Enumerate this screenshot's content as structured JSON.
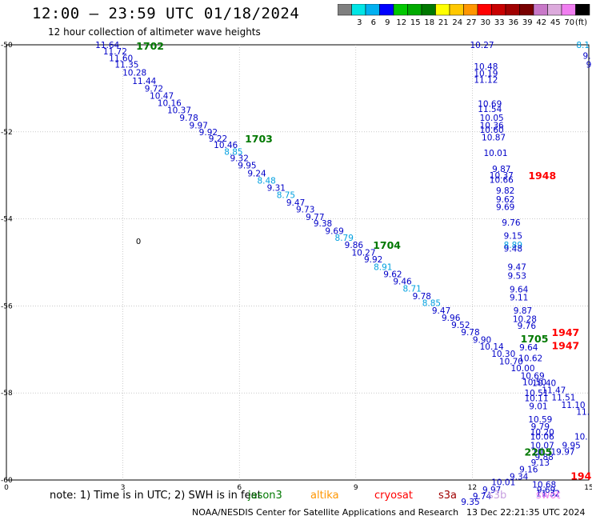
{
  "title": "12:00 – 23:59 UTC 01/18/2024",
  "subtitle": "12 hour collection of altimeter wave heights",
  "colorbar": {
    "unit": "(ft)",
    "bins": [
      {
        "label": "",
        "color": "#7f7f7f"
      },
      {
        "label": "3",
        "color": "#00e5e5"
      },
      {
        "label": "6",
        "color": "#00b0f0"
      },
      {
        "label": "9",
        "color": "#0000ff"
      },
      {
        "label": "12",
        "color": "#00c800"
      },
      {
        "label": "15",
        "color": "#00aa00"
      },
      {
        "label": "18",
        "color": "#007800"
      },
      {
        "label": "21",
        "color": "#ffff00"
      },
      {
        "label": "24",
        "color": "#ffc800"
      },
      {
        "label": "27",
        "color": "#ff9600"
      },
      {
        "label": "30",
        "color": "#ff0000"
      },
      {
        "label": "33",
        "color": "#c80000"
      },
      {
        "label": "36",
        "color": "#a00000"
      },
      {
        "label": "39",
        "color": "#780000"
      },
      {
        "label": "42",
        "color": "#c878c8"
      },
      {
        "label": "45",
        "color": "#dcaadc"
      },
      {
        "label": "70",
        "color": "#f07ef0"
      },
      {
        "label": "",
        "color": "#000000"
      }
    ]
  },
  "note": "note:  1) Time is in UTC; 2) SWH is in feet",
  "legend": [
    {
      "name": "jason3",
      "color": "#007800"
    },
    {
      "name": "altika",
      "color": "#ff9600"
    },
    {
      "name": "cryosat",
      "color": "#ff0000"
    },
    {
      "name": "s3a",
      "color": "#a00000"
    },
    {
      "name": "s3b",
      "color": "#c8a0e0"
    },
    {
      "name": "swot",
      "color": "#f07ef0"
    }
  ],
  "credit": "NOAA/NESDIS Center for Satellite Applications and Research",
  "timestamp": "13 Dec 22:21:35 UTC 2024",
  "chart_data": {
    "type": "scatter",
    "xlim": [
      0,
      15
    ],
    "ylim": [
      -60,
      -50
    ],
    "xticks": [
      "0",
      "3",
      "6",
      "9",
      "12",
      "15"
    ],
    "yticks": [
      "-50",
      "-52",
      "-54",
      "-56",
      "-58",
      "-60"
    ],
    "marker_label": {
      "x": 3.4,
      "y": -54.5,
      "text": "0"
    },
    "pass_labels": [
      {
        "x": 3.7,
        "y": -50.02,
        "text": "1702",
        "color": "#007800"
      },
      {
        "x": 6.5,
        "y": -52.15,
        "text": "1703",
        "color": "#007800"
      },
      {
        "x": 9.8,
        "y": -54.6,
        "text": "1704",
        "color": "#007800"
      },
      {
        "x": 13.6,
        "y": -56.75,
        "text": "1705",
        "color": "#007800"
      },
      {
        "x": 13.7,
        "y": -59.35,
        "text": "2205",
        "color": "#007800"
      },
      {
        "x": 13.8,
        "y": -53.0,
        "text": "1948",
        "color": "#ff0000"
      },
      {
        "x": 14.4,
        "y": -56.6,
        "text": "1947",
        "color": "#ff0000"
      },
      {
        "x": 14.4,
        "y": -56.9,
        "text": "1947",
        "color": "#ff0000"
      },
      {
        "x": 14.8,
        "y": -59.9,
        "text": "194",
        "color": "#ff0000"
      }
    ],
    "points": [
      {
        "x": 2.6,
        "y": -50.0,
        "v": "11.64",
        "color": "#0000c8"
      },
      {
        "x": 2.8,
        "y": -50.15,
        "v": "11.72",
        "color": "#0000c8"
      },
      {
        "x": 2.95,
        "y": -50.3,
        "v": "11.60",
        "color": "#0000c8"
      },
      {
        "x": 3.1,
        "y": -50.45,
        "v": "11.35",
        "color": "#0000c8"
      },
      {
        "x": 3.3,
        "y": -50.63,
        "v": "10.28",
        "color": "#0000c8"
      },
      {
        "x": 3.55,
        "y": -50.83,
        "v": "11.44",
        "color": "#0000c8"
      },
      {
        "x": 3.8,
        "y": -51.0,
        "v": "9.72",
        "color": "#0000c8"
      },
      {
        "x": 4.0,
        "y": -51.17,
        "v": "10.47",
        "color": "#0000c8"
      },
      {
        "x": 4.2,
        "y": -51.33,
        "v": "10.16",
        "color": "#0000c8"
      },
      {
        "x": 4.45,
        "y": -51.5,
        "v": "10.37",
        "color": "#0000c8"
      },
      {
        "x": 4.7,
        "y": -51.67,
        "v": "9.78",
        "color": "#0000c8"
      },
      {
        "x": 4.95,
        "y": -51.85,
        "v": "9.97",
        "color": "#0000c8"
      },
      {
        "x": 5.2,
        "y": -52.0,
        "v": "9.92",
        "color": "#0000c8"
      },
      {
        "x": 5.45,
        "y": -52.15,
        "v": "9.22",
        "color": "#0000c8"
      },
      {
        "x": 5.65,
        "y": -52.3,
        "v": "10.46",
        "color": "#0000c8"
      },
      {
        "x": 5.85,
        "y": -52.45,
        "v": "8.85",
        "color": "#00a0e0"
      },
      {
        "x": 6.0,
        "y": -52.6,
        "v": "9.32",
        "color": "#0000c8"
      },
      {
        "x": 6.2,
        "y": -52.77,
        "v": "9.95",
        "color": "#0000c8"
      },
      {
        "x": 6.45,
        "y": -52.95,
        "v": "9.24",
        "color": "#0000c8"
      },
      {
        "x": 6.7,
        "y": -53.12,
        "v": "8.48",
        "color": "#00a0e0"
      },
      {
        "x": 6.95,
        "y": -53.28,
        "v": "9.31",
        "color": "#0000c8"
      },
      {
        "x": 7.2,
        "y": -53.45,
        "v": "8.75",
        "color": "#00a0e0"
      },
      {
        "x": 7.45,
        "y": -53.62,
        "v": "9.47",
        "color": "#0000c8"
      },
      {
        "x": 7.7,
        "y": -53.78,
        "v": "9.73",
        "color": "#0000c8"
      },
      {
        "x": 7.95,
        "y": -53.95,
        "v": "9.77",
        "color": "#0000c8"
      },
      {
        "x": 8.15,
        "y": -54.1,
        "v": "9.38",
        "color": "#0000c8"
      },
      {
        "x": 8.45,
        "y": -54.27,
        "v": "9.69",
        "color": "#0000c8"
      },
      {
        "x": 8.7,
        "y": -54.43,
        "v": "8.79",
        "color": "#00a0e0"
      },
      {
        "x": 8.95,
        "y": -54.6,
        "v": "9.86",
        "color": "#0000c8"
      },
      {
        "x": 9.2,
        "y": -54.77,
        "v": "10.27",
        "color": "#0000c8"
      },
      {
        "x": 9.45,
        "y": -54.93,
        "v": "9.92",
        "color": "#0000c8"
      },
      {
        "x": 9.7,
        "y": -55.1,
        "v": "8.91",
        "color": "#00a0e0"
      },
      {
        "x": 9.95,
        "y": -55.27,
        "v": "9.62",
        "color": "#0000c8"
      },
      {
        "x": 10.2,
        "y": -55.43,
        "v": "9.46",
        "color": "#0000c8"
      },
      {
        "x": 10.45,
        "y": -55.6,
        "v": "8.71",
        "color": "#00a0e0"
      },
      {
        "x": 10.7,
        "y": -55.77,
        "v": "9.78",
        "color": "#0000c8"
      },
      {
        "x": 10.95,
        "y": -55.93,
        "v": "8.85",
        "color": "#00a0e0"
      },
      {
        "x": 11.2,
        "y": -56.1,
        "v": "9.47",
        "color": "#0000c8"
      },
      {
        "x": 11.45,
        "y": -56.27,
        "v": "9.96",
        "color": "#0000c8"
      },
      {
        "x": 11.7,
        "y": -56.43,
        "v": "9.52",
        "color": "#0000c8"
      },
      {
        "x": 11.95,
        "y": -56.6,
        "v": "9.78",
        "color": "#0000c8"
      },
      {
        "x": 12.25,
        "y": -56.77,
        "v": "9.90",
        "color": "#0000c8"
      },
      {
        "x": 12.5,
        "y": -56.93,
        "v": "10.14",
        "color": "#0000c8"
      },
      {
        "x": 12.8,
        "y": -57.1,
        "v": "10.30",
        "color": "#0000c8"
      },
      {
        "x": 13.0,
        "y": -57.27,
        "v": "10.70",
        "color": "#0000c8"
      },
      {
        "x": 13.3,
        "y": -57.43,
        "v": "10.00",
        "color": "#0000c8"
      },
      {
        "x": 13.55,
        "y": -57.6,
        "v": "10.69",
        "color": "#0000c8"
      },
      {
        "x": 13.85,
        "y": -57.77,
        "v": "10.40",
        "color": "#0000c8"
      },
      {
        "x": 14.1,
        "y": -57.93,
        "v": "11.47",
        "color": "#0000c8"
      },
      {
        "x": 14.35,
        "y": -58.1,
        "v": "11.51",
        "color": "#0000c8"
      },
      {
        "x": 14.6,
        "y": -58.27,
        "v": "11.10",
        "color": "#0000c8"
      },
      {
        "x": 14.85,
        "y": -58.43,
        "v": "11.",
        "color": "#0000c8"
      },
      {
        "x": 12.25,
        "y": -50.0,
        "v": "10.27",
        "color": "#0000c8"
      },
      {
        "x": 12.35,
        "y": -50.5,
        "v": "10.48",
        "color": "#0000c8"
      },
      {
        "x": 12.35,
        "y": -50.65,
        "v": "10.19",
        "color": "#0000c8"
      },
      {
        "x": 12.35,
        "y": -50.8,
        "v": "11.12",
        "color": "#0000c8"
      },
      {
        "x": 12.45,
        "y": -51.35,
        "v": "10.69",
        "color": "#0000c8"
      },
      {
        "x": 12.45,
        "y": -51.47,
        "v": "11.54",
        "color": "#0000c8"
      },
      {
        "x": 12.5,
        "y": -51.67,
        "v": "10.05",
        "color": "#0000c8"
      },
      {
        "x": 12.5,
        "y": -51.85,
        "v": "10.36",
        "color": "#0000c8"
      },
      {
        "x": 12.5,
        "y": -51.95,
        "v": "10.60",
        "color": "#0000c8"
      },
      {
        "x": 12.55,
        "y": -52.12,
        "v": "10.87",
        "color": "#0000c8"
      },
      {
        "x": 12.6,
        "y": -52.48,
        "v": "10.01",
        "color": "#0000c8"
      },
      {
        "x": 12.75,
        "y": -52.85,
        "v": "9.87",
        "color": "#0000c8"
      },
      {
        "x": 12.75,
        "y": -53.0,
        "v": "10.37",
        "color": "#0000c8"
      },
      {
        "x": 12.75,
        "y": -53.1,
        "v": "10.66",
        "color": "#0000c8"
      },
      {
        "x": 12.85,
        "y": -53.35,
        "v": "9.82",
        "color": "#0000c8"
      },
      {
        "x": 12.85,
        "y": -53.55,
        "v": "9.62",
        "color": "#0000c8"
      },
      {
        "x": 12.85,
        "y": -53.72,
        "v": "9.69",
        "color": "#0000c8"
      },
      {
        "x": 13.0,
        "y": -54.08,
        "v": "9.76",
        "color": "#0000c8"
      },
      {
        "x": 13.05,
        "y": -54.38,
        "v": "9.15",
        "color": "#0000c8"
      },
      {
        "x": 13.05,
        "y": -54.6,
        "v": "8.89",
        "color": "#00a0e0"
      },
      {
        "x": 13.05,
        "y": -54.68,
        "v": "9.48",
        "color": "#0000c8"
      },
      {
        "x": 13.15,
        "y": -55.1,
        "v": "9.47",
        "color": "#0000c8"
      },
      {
        "x": 13.15,
        "y": -55.3,
        "v": "9.53",
        "color": "#0000c8"
      },
      {
        "x": 13.2,
        "y": -55.62,
        "v": "9.64",
        "color": "#0000c8"
      },
      {
        "x": 13.2,
        "y": -55.8,
        "v": "9.11",
        "color": "#0000c8"
      },
      {
        "x": 13.3,
        "y": -56.1,
        "v": "9.87",
        "color": "#0000c8"
      },
      {
        "x": 13.35,
        "y": -56.3,
        "v": "10.28",
        "color": "#0000c8"
      },
      {
        "x": 13.4,
        "y": -56.45,
        "v": "9.76",
        "color": "#0000c8"
      },
      {
        "x": 13.45,
        "y": -56.95,
        "v": "9.64",
        "color": "#0000c8"
      },
      {
        "x": 13.5,
        "y": -57.2,
        "v": "10.62",
        "color": "#0000c8"
      },
      {
        "x": 13.6,
        "y": -57.75,
        "v": "10.50",
        "color": "#0000c8"
      },
      {
        "x": 13.65,
        "y": -58.0,
        "v": "10.51",
        "color": "#0000c8"
      },
      {
        "x": 13.65,
        "y": -58.12,
        "v": "10.11",
        "color": "#0000c8"
      },
      {
        "x": 13.7,
        "y": -58.3,
        "v": "9.01",
        "color": "#0000c8"
      },
      {
        "x": 13.75,
        "y": -58.6,
        "v": "10.59",
        "color": "#0000c8"
      },
      {
        "x": 13.75,
        "y": -58.77,
        "v": "9.79",
        "color": "#0000c8"
      },
      {
        "x": 13.8,
        "y": -58.9,
        "v": "10.20",
        "color": "#0000c8"
      },
      {
        "x": 13.8,
        "y": -59.0,
        "v": "10.06",
        "color": "#0000c8"
      },
      {
        "x": 13.8,
        "y": -59.2,
        "v": "10.07",
        "color": "#0000c8"
      },
      {
        "x": 13.85,
        "y": -59.35,
        "v": "10.31",
        "color": "#0000c8"
      },
      {
        "x": 13.85,
        "y": -59.47,
        "v": "9.88",
        "color": "#0000c8"
      },
      {
        "x": 13.75,
        "y": -59.6,
        "v": "9.13",
        "color": "#0000c8"
      },
      {
        "x": 13.85,
        "y": -60.1,
        "v": "10.68",
        "color": "#0000c8"
      },
      {
        "x": 13.9,
        "y": -60.22,
        "v": "9.69",
        "color": "#0000c8"
      },
      {
        "x": 13.95,
        "y": -60.3,
        "v": "11.32",
        "color": "#0000c8"
      },
      {
        "x": 14.4,
        "y": -59.35,
        "v": "9.97",
        "color": "#0000c8"
      },
      {
        "x": 14.55,
        "y": -59.2,
        "v": "9.95",
        "color": "#0000c8"
      },
      {
        "x": 14.8,
        "y": -59.0,
        "v": "10.",
        "color": "#0000c8"
      },
      {
        "x": 13.45,
        "y": -59.75,
        "v": "9.16",
        "color": "#0000c8"
      },
      {
        "x": 13.2,
        "y": -59.92,
        "v": "9.34",
        "color": "#0000c8"
      },
      {
        "x": 12.8,
        "y": -60.05,
        "v": "10.01",
        "color": "#0000c8"
      },
      {
        "x": 12.5,
        "y": -60.22,
        "v": "9.97",
        "color": "#0000c8"
      },
      {
        "x": 12.25,
        "y": -60.37,
        "v": "9.74",
        "color": "#0000c8"
      },
      {
        "x": 11.95,
        "y": -60.5,
        "v": "9.35",
        "color": "#0000c8"
      },
      {
        "x": 14.85,
        "y": -50.0,
        "v": "8.1",
        "color": "#00a0e0"
      },
      {
        "x": 14.95,
        "y": -50.25,
        "v": "9.",
        "color": "#0000c8"
      },
      {
        "x": 15.0,
        "y": -50.45,
        "v": "9",
        "color": "#0000c8"
      }
    ]
  }
}
